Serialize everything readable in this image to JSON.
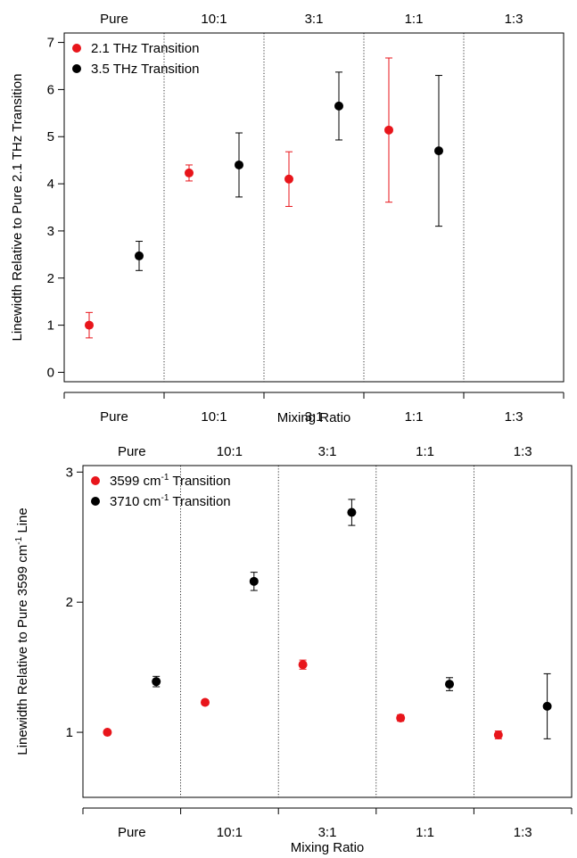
{
  "chart_data": [
    {
      "type": "scatter",
      "categories": [
        "Pure",
        "10:1",
        "3:1",
        "1:1",
        "1:3"
      ],
      "xlabel": "Mixing Ratio",
      "ylabel": "Linewidth Relative to Pure 2.1 THz Transition",
      "ylim": [
        -0.2,
        7.2
      ],
      "yticks": [
        0,
        1,
        2,
        3,
        4,
        5,
        6,
        7
      ],
      "yticklabels": [
        "0",
        "1",
        "2",
        "3",
        "4",
        "5",
        "6",
        "7"
      ],
      "legend": "top-left",
      "series": [
        {
          "name": "2.1 THz Transition",
          "color": "#e8151b",
          "points": [
            {
              "category": "Pure",
              "y": 1.0,
              "err": 0.27
            },
            {
              "category": "10:1",
              "y": 4.23,
              "err": 0.17
            },
            {
              "category": "3:1",
              "y": 4.1,
              "err": 0.58
            },
            {
              "category": "1:1",
              "y": 5.14,
              "err": 1.53
            }
          ]
        },
        {
          "name": "3.5 THz Transition",
          "color": "#000000",
          "points": [
            {
              "category": "Pure",
              "y": 2.47,
              "err": 0.31
            },
            {
              "category": "10:1",
              "y": 4.4,
              "err": 0.68
            },
            {
              "category": "3:1",
              "y": 5.65,
              "err": 0.72
            },
            {
              "category": "1:1",
              "y": 4.7,
              "err": 1.6
            }
          ]
        }
      ]
    },
    {
      "type": "scatter",
      "categories": [
        "Pure",
        "10:1",
        "3:1",
        "1:1",
        "1:3"
      ],
      "xlabel": "Mixing Ratio",
      "ylabel": "Linewidth Relative to Pure 3599 cm-1 Line",
      "ylabel_parts": {
        "before": "Linewidth Relative to Pure 3599 cm",
        "sup": "-1",
        "after": " Line"
      },
      "ylim": [
        0.5,
        3.05
      ],
      "yticks": [
        1,
        2,
        3
      ],
      "yticklabels": [
        "1",
        "2",
        "3"
      ],
      "legend": "top-left",
      "series": [
        {
          "name": "3599 cm-1 Transition",
          "name_parts": {
            "before": "3599 cm",
            "sup": "-1",
            "after": " Transition"
          },
          "color": "#e8151b",
          "points": [
            {
              "category": "Pure",
              "y": 1.0,
              "err": 0.015
            },
            {
              "category": "10:1",
              "y": 1.23,
              "err": 0.02
            },
            {
              "category": "3:1",
              "y": 1.52,
              "err": 0.035
            },
            {
              "category": "1:1",
              "y": 1.11,
              "err": 0.025
            },
            {
              "category": "1:3",
              "y": 0.98,
              "err": 0.03
            }
          ]
        },
        {
          "name": "3710 cm-1 Transition",
          "name_parts": {
            "before": "3710 cm",
            "sup": "-1",
            "after": " Transition"
          },
          "color": "#000000",
          "points": [
            {
              "category": "Pure",
              "y": 1.39,
              "err": 0.04
            },
            {
              "category": "10:1",
              "y": 2.16,
              "err": 0.07
            },
            {
              "category": "3:1",
              "y": 2.69,
              "err": 0.1
            },
            {
              "category": "1:1",
              "y": 1.37,
              "err": 0.05
            },
            {
              "category": "1:3",
              "y": 1.2,
              "err": 0.25
            }
          ]
        }
      ]
    }
  ]
}
